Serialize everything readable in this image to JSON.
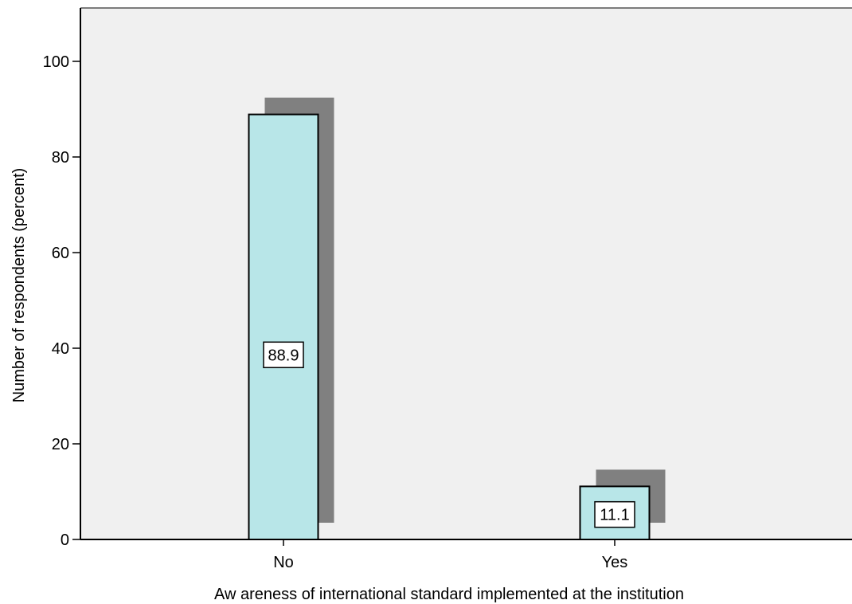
{
  "chart_data": {
    "type": "bar",
    "title": "",
    "xlabel": "Aw areness of international standard implemented at the institution",
    "ylabel": "Number  of respondents (percent)",
    "categories": [
      "No",
      "Yes"
    ],
    "values": [
      88.9,
      11.1
    ],
    "data_labels": [
      "88.9",
      "11.1"
    ],
    "ylim": [
      0,
      110
    ],
    "yticks": [
      0,
      20,
      40,
      60,
      80,
      100
    ],
    "ytick_labels": [
      "0",
      "20",
      "40",
      "60",
      "80",
      "100"
    ],
    "grid": false,
    "bar_style": "3d-shadow",
    "colors": {
      "plot_background": "#f0f0f0",
      "bar_fill": "#b8e6e8",
      "bar_shadow": "#808080",
      "axis": "#000000"
    }
  }
}
